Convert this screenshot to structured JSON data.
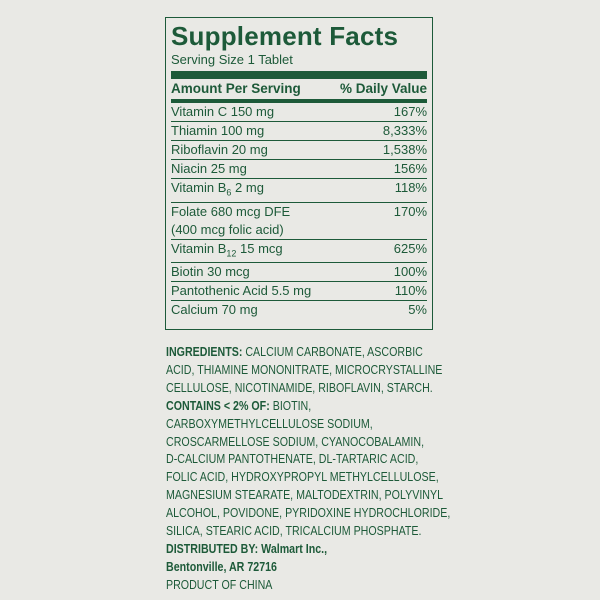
{
  "title": "Supplement Facts",
  "serving": "Serving Size 1 Tablet",
  "header": {
    "amount": "Amount Per Serving",
    "dv": "% Daily Value"
  },
  "rows": [
    {
      "name": "Vitamin C 150 mg",
      "dv": "167%"
    },
    {
      "name": "Thiamin 100 mg",
      "dv": "8,333%"
    },
    {
      "name": "Riboflavin 20 mg",
      "dv": "1,538%"
    },
    {
      "name": "Niacin 25 mg",
      "dv": "156%"
    },
    {
      "name": "Vitamin B",
      "sub": "6",
      "rest": " 2 mg",
      "dv": "118%"
    },
    {
      "name": "Folate 680 mcg DFE",
      "line2": "(400 mcg folic acid)",
      "dv": "170%"
    },
    {
      "name": "Vitamin B",
      "sub": "12",
      "rest": " 15 mcg",
      "dv": "625%"
    },
    {
      "name": "Biotin 30 mcg",
      "dv": "100%"
    },
    {
      "name": "Pantothenic Acid 5.5 mg",
      "dv": "110%"
    },
    {
      "name": "Calcium 70 mg",
      "dv": "5%"
    }
  ],
  "ingredients": [
    {
      "b": "INGREDIENTS:",
      "t": " CALCIUM CARBONATE, ASCORBIC"
    },
    {
      "b": "",
      "t": "ACID, THIAMINE MONONITRATE, MICROCRYSTALLINE"
    },
    {
      "b": "",
      "t": "CELLULOSE, NICOTINAMIDE, RIBOFLAVIN, STARCH."
    },
    {
      "b": "CONTAINS < 2% OF:",
      "t": " BIOTIN,"
    },
    {
      "b": "",
      "t": "CARBOXYMETHYLCELLULOSE SODIUM,"
    },
    {
      "b": "",
      "t": "CROSCARMELLOSE SODIUM, CYANOCOBALAMIN,"
    },
    {
      "b": "",
      "t": "D-CALCIUM PANTOTHENATE, DL-TARTARIC ACID,"
    },
    {
      "b": "",
      "t": "FOLIC ACID, HYDROXYPROPYL METHYLCELLULOSE,"
    },
    {
      "b": "",
      "t": "MAGNESIUM STEARATE, MALTODEXTRIN, POLYVINYL"
    },
    {
      "b": "",
      "t": "ALCOHOL, POVIDONE, PYRIDOXINE HYDROCHLORIDE,"
    },
    {
      "b": "",
      "t": "SILICA, STEARIC ACID, TRICALCIUM PHOSPHATE."
    },
    {
      "b": "DISTRIBUTED BY: Walmart Inc.,",
      "t": ""
    },
    {
      "b": "Bentonville, AR 72716",
      "t": ""
    },
    {
      "b": "",
      "t": "PRODUCT OF CHINA"
    }
  ]
}
